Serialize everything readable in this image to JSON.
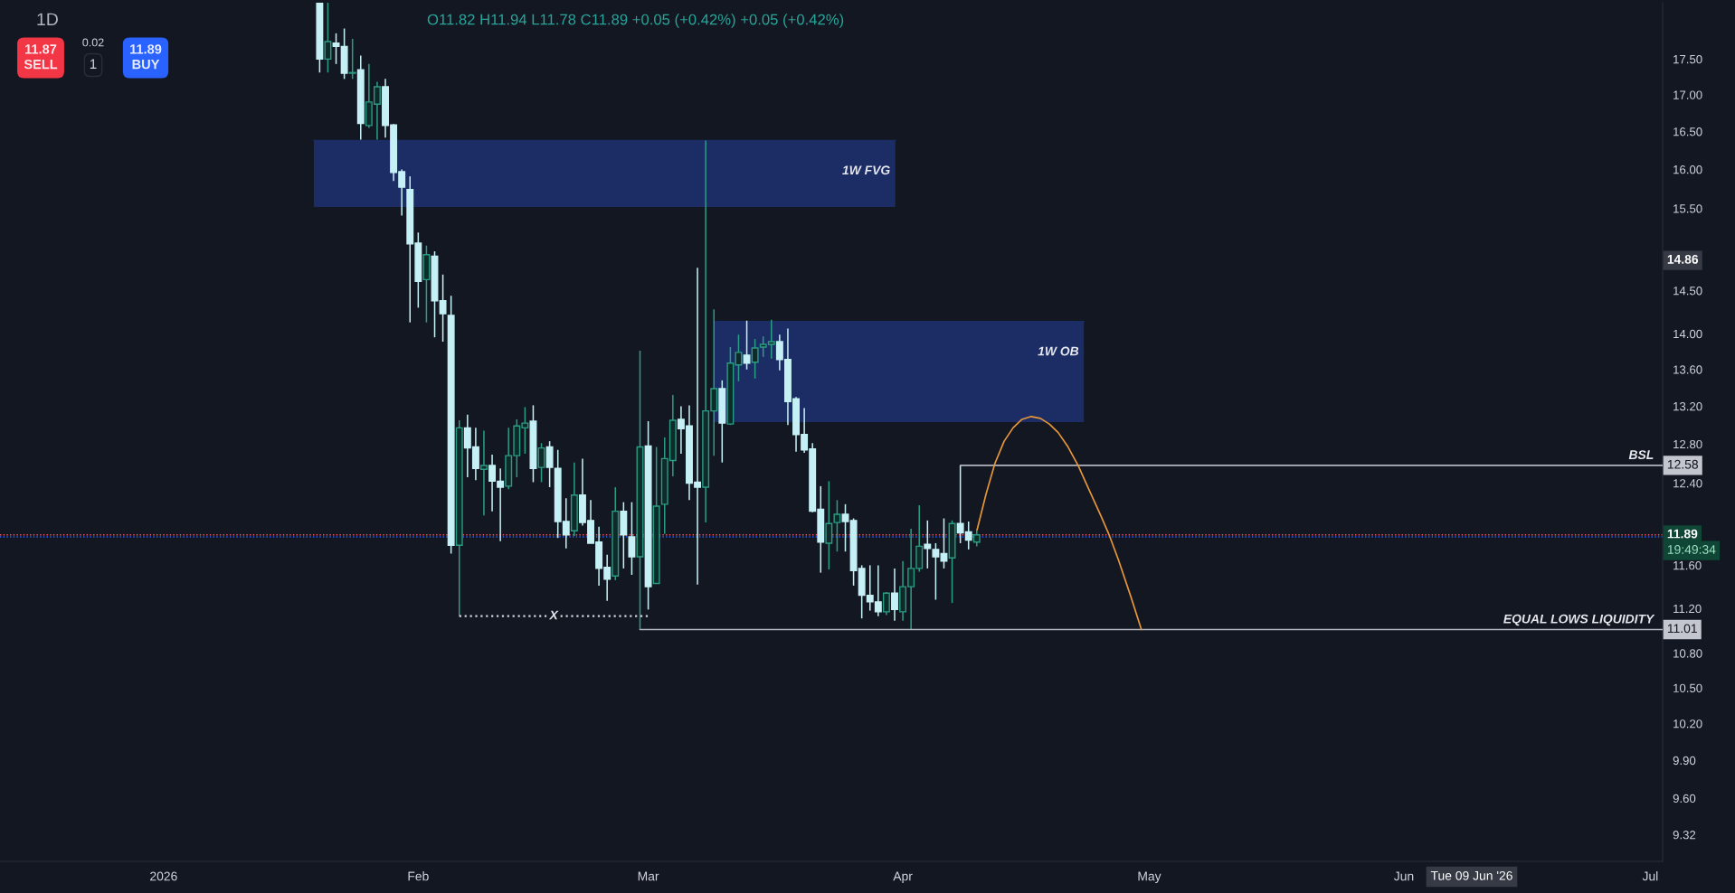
{
  "chart_data": {
    "type": "candlestick",
    "title": "1D",
    "subtitle": "O11.82 H11.94 L11.78 C11.89 +0.05 (+0.42%) +0.05 (+0.42%)",
    "x": [
      "2026-01-20",
      "2026-01-21",
      "2026-01-22",
      "2026-01-23",
      "2026-01-24",
      "2026-01-25",
      "2026-01-26",
      "2026-01-27",
      "2026-01-28",
      "2026-01-29",
      "2026-01-30",
      "2026-01-31",
      "2026-02-01",
      "2026-02-02",
      "2026-02-03",
      "2026-02-04",
      "2026-02-05",
      "2026-02-06",
      "2026-02-07",
      "2026-02-08",
      "2026-02-09",
      "2026-02-10",
      "2026-02-11",
      "2026-02-12",
      "2026-02-13",
      "2026-02-14",
      "2026-02-15",
      "2026-02-16",
      "2026-02-17",
      "2026-02-18",
      "2026-02-19",
      "2026-02-20",
      "2026-02-21",
      "2026-02-22",
      "2026-02-23",
      "2026-02-24",
      "2026-02-25",
      "2026-02-26",
      "2026-02-27",
      "2026-02-28",
      "2026-03-01",
      "2026-03-02",
      "2026-03-03",
      "2026-03-04",
      "2026-03-05",
      "2026-03-06",
      "2026-03-07",
      "2026-03-08",
      "2026-03-09",
      "2026-03-10",
      "2026-03-11",
      "2026-03-12",
      "2026-03-13",
      "2026-03-14",
      "2026-03-15",
      "2026-03-16",
      "2026-03-17",
      "2026-03-18",
      "2026-03-19",
      "2026-03-20",
      "2026-03-21",
      "2026-03-22",
      "2026-03-23",
      "2026-03-24",
      "2026-03-25",
      "2026-03-26",
      "2026-03-27",
      "2026-03-28",
      "2026-03-29",
      "2026-03-30",
      "2026-03-31",
      "2026-04-01",
      "2026-04-02",
      "2026-04-03",
      "2026-04-04",
      "2026-04-05",
      "2026-04-06",
      "2026-04-07",
      "2026-04-08",
      "2026-04-09",
      "2026-04-10"
    ],
    "ohlc": [
      [
        18.32,
        18.32,
        17.31,
        17.5
      ],
      [
        17.5,
        18.32,
        17.31,
        17.75
      ],
      [
        17.73,
        17.87,
        17.43,
        17.68
      ],
      [
        17.68,
        17.94,
        17.22,
        17.3
      ],
      [
        17.3,
        17.79,
        17.22,
        17.31
      ],
      [
        17.35,
        17.55,
        16.39,
        16.61
      ],
      [
        16.58,
        17.43,
        16.55,
        16.9
      ],
      [
        16.87,
        17.18,
        16.39,
        17.11
      ],
      [
        17.11,
        17.22,
        16.42,
        16.58
      ],
      [
        16.59,
        16.6,
        15.85,
        15.96
      ],
      [
        15.97,
        16.0,
        15.41,
        15.77
      ],
      [
        15.74,
        15.91,
        14.13,
        15.06
      ],
      [
        15.07,
        15.2,
        14.3,
        14.61
      ],
      [
        14.63,
        15.04,
        14.13,
        14.93
      ],
      [
        14.91,
        14.97,
        13.96,
        14.38
      ],
      [
        14.38,
        14.69,
        13.91,
        14.23
      ],
      [
        14.21,
        14.44,
        11.71,
        11.79
      ],
      [
        11.79,
        13.05,
        11.13,
        12.97
      ],
      [
        12.97,
        13.11,
        12.46,
        12.76
      ],
      [
        12.77,
        12.97,
        12.43,
        12.55
      ],
      [
        12.54,
        12.94,
        12.08,
        12.58
      ],
      [
        12.58,
        12.69,
        12.12,
        12.42
      ],
      [
        12.42,
        12.55,
        11.83,
        12.36
      ],
      [
        12.37,
        12.97,
        12.34,
        12.68
      ],
      [
        12.68,
        13.06,
        12.46,
        12.99
      ],
      [
        12.97,
        13.19,
        12.7,
        13.02
      ],
      [
        13.04,
        13.21,
        12.41,
        12.55
      ],
      [
        12.56,
        12.81,
        12.41,
        12.76
      ],
      [
        12.77,
        12.83,
        12.36,
        12.56
      ],
      [
        12.55,
        12.74,
        11.86,
        12.02
      ],
      [
        12.02,
        12.25,
        11.76,
        11.89
      ],
      [
        11.93,
        12.61,
        11.88,
        12.28
      ],
      [
        12.28,
        12.65,
        11.98,
        12.01
      ],
      [
        12.03,
        12.23,
        11.81,
        11.81
      ],
      [
        11.82,
        11.97,
        11.41,
        11.57
      ],
      [
        11.58,
        11.7,
        11.27,
        11.47
      ],
      [
        11.5,
        12.36,
        11.46,
        12.12
      ],
      [
        12.12,
        12.21,
        11.57,
        11.89
      ],
      [
        11.87,
        12.21,
        11.51,
        11.68
      ],
      [
        11.68,
        13.81,
        11.01,
        12.77
      ],
      [
        12.78,
        13.04,
        11.19,
        11.4
      ],
      [
        11.43,
        12.77,
        11.43,
        12.17
      ],
      [
        12.19,
        12.87,
        11.9,
        12.65
      ],
      [
        12.63,
        13.32,
        12.47,
        13.05
      ],
      [
        13.06,
        13.2,
        12.7,
        12.96
      ],
      [
        12.99,
        13.21,
        12.23,
        12.4
      ],
      [
        12.41,
        14.77,
        11.42,
        12.36
      ],
      [
        12.36,
        16.38,
        12.01,
        13.15
      ],
      [
        13.15,
        14.28,
        12.68,
        13.39
      ],
      [
        13.39,
        13.48,
        12.61,
        13.02
      ],
      [
        13.01,
        13.85,
        13.0,
        13.67
      ],
      [
        13.65,
        13.99,
        13.47,
        13.79
      ],
      [
        13.76,
        14.15,
        13.6,
        13.67
      ],
      [
        13.68,
        13.94,
        13.5,
        13.84
      ],
      [
        13.85,
        13.97,
        13.74,
        13.88
      ],
      [
        13.88,
        14.16,
        13.72,
        13.91
      ],
      [
        13.91,
        13.99,
        13.59,
        13.71
      ],
      [
        13.71,
        14.06,
        13.0,
        13.25
      ],
      [
        13.28,
        13.3,
        12.72,
        12.9
      ],
      [
        12.9,
        13.18,
        12.71,
        12.74
      ],
      [
        12.75,
        12.81,
        12.11,
        12.12
      ],
      [
        12.14,
        12.37,
        11.53,
        11.82
      ],
      [
        11.81,
        12.42,
        11.56,
        12.0
      ],
      [
        12.01,
        12.23,
        11.73,
        12.09
      ],
      [
        12.09,
        12.19,
        11.73,
        12.02
      ],
      [
        12.03,
        12.05,
        11.41,
        11.55
      ],
      [
        11.57,
        11.6,
        11.11,
        11.32
      ],
      [
        11.32,
        11.6,
        11.18,
        11.26
      ],
      [
        11.26,
        11.6,
        11.13,
        11.17
      ],
      [
        11.17,
        11.35,
        11.14,
        11.34
      ],
      [
        11.34,
        11.57,
        11.09,
        11.19
      ],
      [
        11.17,
        11.64,
        11.09,
        11.4
      ],
      [
        11.4,
        11.95,
        11.01,
        11.57
      ],
      [
        11.57,
        12.18,
        11.54,
        11.78
      ],
      [
        11.8,
        12.03,
        11.57,
        11.76
      ],
      [
        11.75,
        11.81,
        11.28,
        11.68
      ],
      [
        11.71,
        12.05,
        11.57,
        11.64
      ],
      [
        11.67,
        12.03,
        11.25,
        12.0
      ],
      [
        12.0,
        12.58,
        11.81,
        11.91
      ],
      [
        11.92,
        12.02,
        11.75,
        11.84
      ],
      [
        11.82,
        11.94,
        11.78,
        11.89
      ]
    ],
    "series": [
      {
        "type": "line",
        "name": "1W FVG",
        "color": "#1c2c64",
        "x": [
          "2026-01-19T07:00",
          "2026-03-31T02:00"
        ],
        "values": [
          16.38,
          16.38
        ],
        "lower": [
          15.52,
          15.52
        ],
        "upper": [
          16.38,
          16.38
        ]
      },
      {
        "type": "line",
        "name": "1W OB",
        "color": "#1c2c64",
        "x": [
          "2026-03-09T02:00",
          "2026-04-23T01:00"
        ],
        "values": [
          14.14,
          14.14
        ],
        "lower": [
          13.03,
          13.03
        ],
        "upper": [
          14.14,
          14.14
        ]
      },
      {
        "type": "line",
        "name": "BSL",
        "color": "#b2b5be",
        "x": [
          "2026-04-08",
          "2026-07-02T12:00"
        ],
        "values": [
          12.58,
          12.58
        ],
        "value_labels": [
          null,
          "12.58"
        ]
      },
      {
        "type": "line",
        "name": "EQUAL LOWS LIQUIDITY",
        "color": "#b2b5be",
        "x": [
          "2026-02-28",
          "2026-07-02T12:00"
        ],
        "values": [
          11.01,
          11.01
        ],
        "value_labels": [
          null,
          "11.01"
        ]
      },
      {
        "type": "line",
        "name": "X",
        "color": "#d1d4dc",
        "line_style": "dotted",
        "x": [
          "2026-02-06",
          "2026-03-01"
        ],
        "values": [
          11.13,
          11.13
        ]
      },
      {
        "type": "line",
        "color": "#e8963a",
        "x": [
          "2026-04-10T01:00",
          "2026-04-11T03:00",
          "2026-04-12T05:00",
          "2026-04-13T08:00",
          "2026-04-14T10:00",
          "2026-04-15T12:00",
          "2026-04-16T15:00",
          "2026-04-17T18:00",
          "2026-04-18T20:00",
          "2026-04-19T22:00",
          "2026-04-21T01:00",
          "2026-04-22T08:00",
          "2026-04-23T14:00",
          "2026-04-25T02:00",
          "2026-04-26T04:00",
          "2026-04-27T06:00",
          "2026-04-28T18:00",
          "2026-04-30T01:00"
        ],
        "values": [
          11.94,
          12.29,
          12.6,
          12.83,
          12.97,
          13.06,
          13.09,
          13.07,
          13.01,
          12.92,
          12.78,
          12.58,
          12.35,
          12.08,
          11.88,
          11.65,
          11.31,
          11.01
        ]
      }
    ],
    "ref_lines": [
      {
        "axis": "y",
        "value": 11.89,
        "label": "11.89",
        "color": "#f7525f",
        "line_style": "dotted"
      },
      {
        "axis": "y",
        "value": 11.87,
        "label": null,
        "color": "#2962ff",
        "line_style": "dotted"
      }
    ],
    "annotations": [
      "11.87\nSELL",
      "0.02",
      "1",
      "11.89\nBUY",
      "19:49:34",
      "Tue 09 Jun '26",
      {
        "text": "14.86",
        "y": 14.86
      }
    ],
    "log": true,
    "ylim": [
      9.12,
      18.32
    ],
    "yticks": [
      {
        "value": 9.32,
        "label": "9.32"
      },
      {
        "value": 9.6,
        "label": "9.60"
      },
      {
        "value": 9.9,
        "label": "9.90"
      },
      {
        "value": 10.2,
        "label": "10.20"
      },
      {
        "value": 10.5,
        "label": "10.50"
      },
      {
        "value": 10.8,
        "label": "10.80"
      },
      {
        "value": 11.2,
        "label": "11.20"
      },
      {
        "value": 11.6,
        "label": "11.60"
      },
      {
        "value": 12.4,
        "label": "12.40"
      },
      {
        "value": 12.8,
        "label": "12.80"
      },
      {
        "value": 13.2,
        "label": "13.20"
      },
      {
        "value": 13.6,
        "label": "13.60"
      },
      {
        "value": 14,
        "label": "14.00"
      },
      {
        "value": 14.5,
        "label": "14.50"
      },
      {
        "value": 15.5,
        "label": "15.50"
      },
      {
        "value": 16,
        "label": "16.00"
      },
      {
        "value": 16.5,
        "label": "16.50"
      },
      {
        "value": 17,
        "label": "17.00"
      },
      {
        "value": 17.5,
        "label": "17.50"
      }
    ],
    "xlim": [
      "2025-12-12T02:00",
      "2026-07-02T12:00"
    ],
    "xticks": [
      {
        "value": "2026-01-01",
        "label": "2026"
      },
      {
        "value": "2026-02-01",
        "label": "Feb"
      },
      {
        "value": "2026-03-01",
        "label": "Mar"
      },
      {
        "value": "2026-04-01",
        "label": "Apr"
      },
      {
        "value": "2026-05-01",
        "label": "May"
      },
      {
        "value": "2026-06-01",
        "label": "Jun"
      },
      {
        "value": "2026-07-01",
        "label": "Jul"
      }
    ]
  }
}
